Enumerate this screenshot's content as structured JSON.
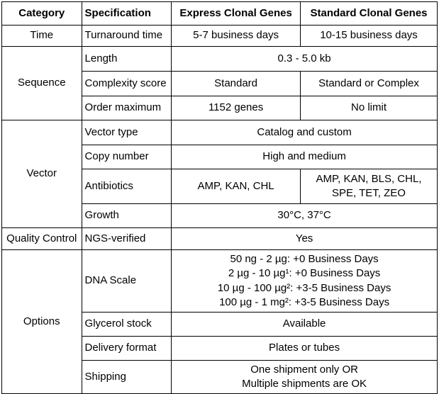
{
  "header": {
    "category": "Category",
    "specification": "Specification",
    "express": "Express Clonal Genes",
    "standard": "Standard Clonal Genes"
  },
  "categories": {
    "time": "Time",
    "sequence": "Sequence",
    "vector": "Vector",
    "quality_control": "Quality Control",
    "options": "Options"
  },
  "rows": {
    "turnaround": {
      "spec": "Turnaround time",
      "express": "5-7 business days",
      "standard": "10-15 business days"
    },
    "length": {
      "spec": "Length",
      "value": "0.3 - 5.0 kb"
    },
    "complexity": {
      "spec": "Complexity score",
      "express": "Standard",
      "standard": "Standard or Complex"
    },
    "order_maximum": {
      "spec": "Order maximum",
      "express": "1152 genes",
      "standard": "No limit"
    },
    "vector_type": {
      "spec": "Vector type",
      "value": "Catalog and custom"
    },
    "copy_number": {
      "spec": "Copy number",
      "value": "High and medium"
    },
    "antibiotics": {
      "spec": "Antibiotics",
      "express": "AMP, KAN, CHL",
      "standard": "AMP, KAN, BLS, CHL,\nSPE, TET, ZEO"
    },
    "growth": {
      "spec": "Growth",
      "value": "30°C, 37°C"
    },
    "ngs_verified": {
      "spec": "NGS-verified",
      "value": "Yes"
    },
    "dna_scale": {
      "spec": "DNA Scale",
      "value": "50 ng - 2 µg: +0 Business Days\n2 µg - 10 µg¹: +0 Business Days\n10 µg - 100 µg²: +3-5 Business Days\n100 µg - 1 mg²: +3-5 Business Days"
    },
    "glycerol_stock": {
      "spec": "Glycerol stock",
      "value": "Available"
    },
    "delivery_format": {
      "spec": "Delivery format",
      "value": "Plates or tubes"
    },
    "shipping": {
      "spec": "Shipping",
      "value": "One shipment only OR\nMultiple shipments are OK"
    }
  }
}
